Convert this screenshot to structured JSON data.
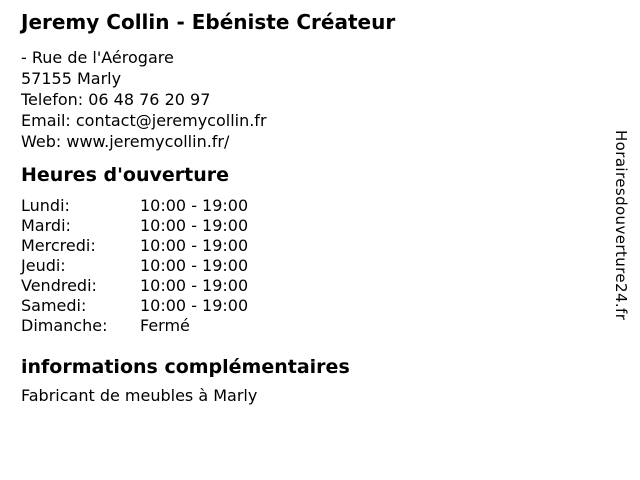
{
  "title": "Jeremy Collin - Ebéniste Créateur",
  "contact_lines": [
    "- Rue de l'Aérogare",
    "57155 Marly",
    "Telefon: 06 48 76 20 97",
    "Email: contact@jeremycollin.fr",
    "Web: www.jeremycollin.fr/"
  ],
  "hours": {
    "heading": "Heures d'ouverture",
    "rows": [
      {
        "day": "Lundi:",
        "time": "10:00 - 19:00"
      },
      {
        "day": "Mardi:",
        "time": "10:00 - 19:00"
      },
      {
        "day": "Mercredi:",
        "time": "10:00 - 19:00"
      },
      {
        "day": "Jeudi:",
        "time": "10:00 - 19:00"
      },
      {
        "day": "Vendredi:",
        "time": "10:00 - 19:00"
      },
      {
        "day": "Samedi:",
        "time": "10:00 - 19:00"
      },
      {
        "day": "Dimanche:",
        "time": "Fermé"
      }
    ]
  },
  "info": {
    "heading": "informations complémentaires",
    "text": "Fabricant de meubles à Marly"
  },
  "watermark": "Horairesdouverture24.fr",
  "colors": {
    "background": "#ffffff",
    "text": "#000000"
  }
}
